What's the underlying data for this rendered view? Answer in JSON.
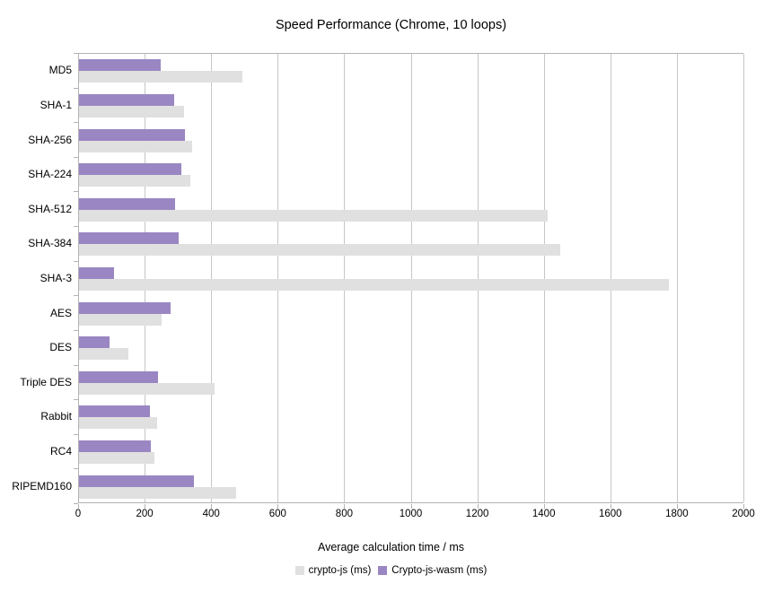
{
  "title": "Speed Performance (Chrome, 10 loops)",
  "xlabel": "Average calculation time / ms",
  "colors": {
    "crypto_js": "#e0e0e0",
    "crypto_js_wasm": "#9a86c2",
    "gridline": "#c6c6c6",
    "axis": "#b3b3b3"
  },
  "chart_data": {
    "type": "bar",
    "orientation": "horizontal",
    "title": "Speed Performance (Chrome, 10 loops)",
    "xlabel": "Average calculation time / ms",
    "ylabel": "",
    "categories": [
      "MD5",
      "SHA-1",
      "SHA-256",
      "SHA-224",
      "SHA-512",
      "SHA-384",
      "SHA-3",
      "AES",
      "DES",
      "Triple DES",
      "Rabbit",
      "RC4",
      "RIPEMD160"
    ],
    "series": [
      {
        "name": "crypto-js (ms)",
        "color": "#e0e0e0",
        "values": [
          490,
          316,
          341,
          335,
          1408,
          1447,
          1773,
          248,
          148,
          407,
          234,
          228,
          471
        ]
      },
      {
        "name": "Crypto-js-wasm (ms)",
        "color": "#9a86c2",
        "values": [
          246,
          287,
          318,
          309,
          288,
          300,
          105,
          275,
          93,
          238,
          213,
          217,
          345
        ]
      }
    ],
    "xlim": [
      0,
      2000
    ],
    "xticks": [
      0,
      200,
      400,
      600,
      800,
      1000,
      1200,
      1400,
      1600,
      1800,
      2000
    ],
    "grid": true,
    "legend_position": "bottom"
  }
}
